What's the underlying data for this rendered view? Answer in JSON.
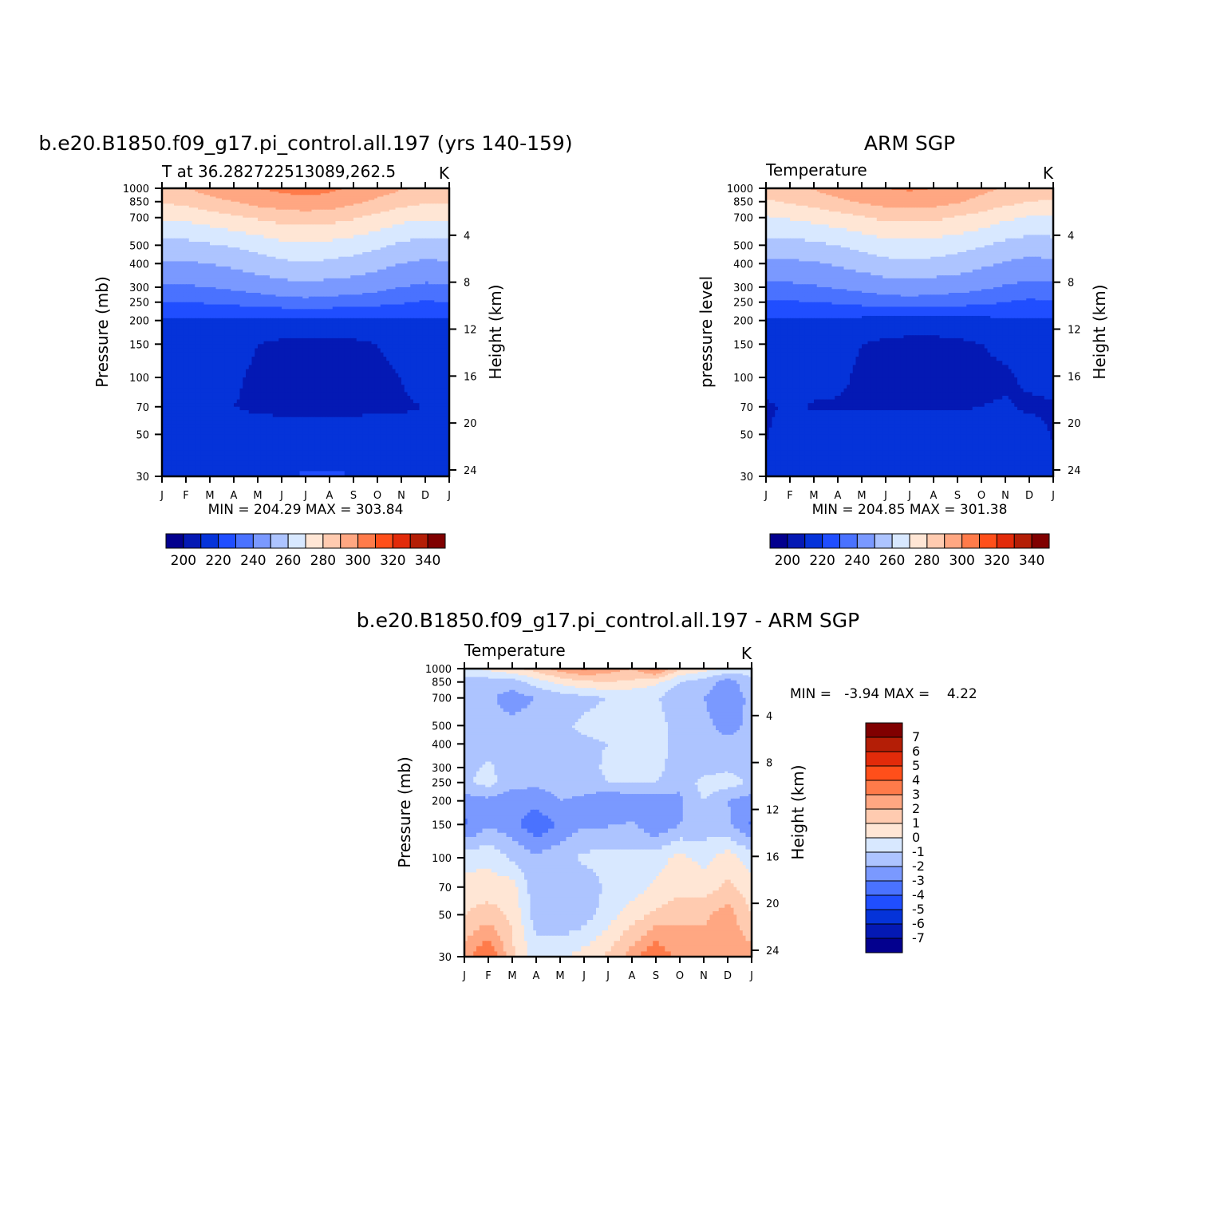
{
  "chart_data": [
    {
      "type": "heatmap",
      "title": "b.e20.B1850.f09_g17.pi_control.all.197 (yrs 140-159)",
      "left_label": "T at 36.282722513089,262.5",
      "right_label": "K",
      "ylabel": "Pressure (mb)",
      "y2label": "Height (km)",
      "stats": "MIN = 204.29 MAX = 303.84",
      "x": [
        "J",
        "F",
        "M",
        "A",
        "M",
        "J",
        "J",
        "A",
        "S",
        "O",
        "N",
        "D",
        "J"
      ],
      "y": [
        1000,
        850,
        700,
        500,
        400,
        300,
        250,
        200,
        150,
        100,
        70,
        50,
        30
      ],
      "y2_ticks": [
        4,
        8,
        12,
        16,
        20,
        24
      ],
      "ylim": [
        1000,
        30
      ],
      "yscale": "log",
      "z": [
        [
          287,
          290,
          294,
          297,
          300,
          302,
          303.8,
          302,
          299,
          295,
          291,
          288,
          287
        ],
        [
          281,
          283,
          287,
          290,
          294,
          296,
          297,
          296,
          292,
          288,
          284,
          281,
          281
        ],
        [
          271,
          272,
          275,
          278,
          281,
          284,
          285,
          284,
          281,
          277,
          273,
          271,
          271
        ],
        [
          257,
          257,
          259,
          261,
          264,
          267,
          268,
          267,
          265,
          262,
          258,
          256,
          257
        ],
        [
          249,
          249,
          250,
          252,
          255,
          258,
          259,
          258,
          256,
          253,
          250,
          248,
          249
        ],
        [
          239,
          239,
          240,
          242,
          244,
          246,
          247,
          246,
          245,
          243,
          240,
          238,
          239
        ],
        [
          230,
          230,
          231,
          232,
          234,
          236,
          237,
          236,
          235,
          233,
          231,
          229,
          230
        ],
        [
          219,
          219,
          219,
          219,
          218,
          217,
          217,
          217,
          217,
          218,
          218,
          219,
          219
        ],
        [
          219,
          219,
          218,
          216,
          210,
          208,
          207,
          208,
          208,
          210,
          214,
          218,
          219
        ],
        [
          218,
          218,
          216,
          212,
          207,
          205,
          205,
          205,
          206,
          207,
          210,
          217,
          218
        ],
        [
          216,
          216,
          214,
          210,
          208,
          208,
          208,
          208,
          208,
          208,
          208,
          210,
          216
        ],
        [
          216,
          216,
          216,
          216,
          215,
          214,
          214,
          214,
          214,
          215,
          216,
          216,
          216
        ],
        [
          215,
          215,
          215,
          215,
          216,
          218,
          221,
          221,
          220,
          215,
          215,
          215,
          215
        ]
      ],
      "colorbar": {
        "levels": [
          190,
          200,
          210,
          220,
          230,
          240,
          250,
          260,
          270,
          280,
          290,
          300,
          310,
          320,
          330,
          340
        ],
        "labels": [
          "200",
          "220",
          "240",
          "260",
          "280",
          "300",
          "320",
          "340"
        ],
        "colors": [
          "#03008e",
          "#0419b4",
          "#0533d9",
          "#204eff",
          "#4a72ff",
          "#7a99ff",
          "#adc4ff",
          "#d8e8ff",
          "#ffe6d5",
          "#ffcbb0",
          "#ffa782",
          "#ff7b4a",
          "#ff4f1a",
          "#e22b0a",
          "#b41e06",
          "#800000"
        ]
      }
    },
    {
      "type": "heatmap",
      "title": "ARM SGP",
      "left_label": "Temperature",
      "right_label": "K",
      "ylabel": "pressure level",
      "y2label": "Height (km)",
      "stats": "MIN = 204.85 MAX = 301.38",
      "x": [
        "J",
        "F",
        "M",
        "A",
        "M",
        "J",
        "J",
        "A",
        "S",
        "O",
        "N",
        "D",
        "J"
      ],
      "y": [
        1000,
        850,
        700,
        500,
        400,
        300,
        250,
        200,
        150,
        100,
        70,
        50,
        30
      ],
      "y2_ticks": [
        4,
        8,
        12,
        16,
        20,
        24
      ],
      "ylim": [
        1000,
        30
      ],
      "yscale": "log",
      "z": [
        [
          284,
          287,
          291,
          295,
          298,
          300,
          301.4,
          300,
          297,
          293,
          289,
          286,
          284
        ],
        [
          279,
          281,
          284,
          288,
          291,
          294,
          295,
          294,
          291,
          287,
          283,
          280,
          279
        ],
        [
          269,
          271,
          273,
          276,
          279,
          282,
          283,
          282,
          279,
          276,
          272,
          269,
          269
        ],
        [
          256,
          256,
          258,
          260,
          263,
          266,
          267,
          266,
          264,
          261,
          257,
          255,
          256
        ],
        [
          248,
          248,
          249,
          251,
          254,
          257,
          258,
          257,
          255,
          252,
          249,
          247,
          248
        ],
        [
          238,
          238,
          239,
          241,
          243,
          245,
          246,
          245,
          244,
          242,
          239,
          237,
          238
        ],
        [
          229,
          229,
          230,
          231,
          233,
          235,
          236,
          235,
          234,
          232,
          230,
          228,
          229
        ],
        [
          219,
          219,
          219,
          218,
          217,
          216,
          216,
          216,
          216,
          217,
          218,
          219,
          219
        ],
        [
          218,
          218,
          217,
          214,
          210,
          208,
          207,
          207,
          208,
          210,
          213,
          217,
          218
        ],
        [
          216,
          216,
          214,
          212,
          208,
          207,
          206,
          206,
          207,
          207,
          208,
          212,
          216
        ],
        [
          208,
          212,
          209,
          209,
          209,
          209,
          209,
          209,
          209,
          210,
          211,
          208,
          208
        ],
        [
          209,
          216,
          216,
          216,
          216,
          216,
          216,
          216,
          216,
          216,
          216,
          216,
          209
        ],
        [
          215,
          215,
          215,
          215,
          215,
          216,
          220,
          217,
          215,
          215,
          215,
          215,
          215
        ]
      ],
      "colorbar": {
        "levels": [
          190,
          200,
          210,
          220,
          230,
          240,
          250,
          260,
          270,
          280,
          290,
          300,
          310,
          320,
          330,
          340
        ],
        "labels": [
          "200",
          "220",
          "240",
          "260",
          "280",
          "300",
          "320",
          "340"
        ],
        "colors": [
          "#03008e",
          "#0419b4",
          "#0533d9",
          "#204eff",
          "#4a72ff",
          "#7a99ff",
          "#adc4ff",
          "#d8e8ff",
          "#ffe6d5",
          "#ffcbb0",
          "#ffa782",
          "#ff7b4a",
          "#ff4f1a",
          "#e22b0a",
          "#b41e06",
          "#800000"
        ]
      }
    },
    {
      "type": "heatmap",
      "title": "b.e20.B1850.f09_g17.pi_control.all.197 - ARM SGP",
      "left_label": "Temperature",
      "right_label": "K",
      "ylabel": "Pressure (mb)",
      "y2label": "Height (km)",
      "stats": "MIN =   -3.94 MAX =    4.22",
      "x": [
        "J",
        "F",
        "M",
        "A",
        "M",
        "J",
        "J",
        "A",
        "S",
        "O",
        "N",
        "D",
        "J"
      ],
      "y": [
        1000,
        850,
        700,
        500,
        400,
        300,
        250,
        200,
        150,
        100,
        70,
        50,
        30
      ],
      "y2_ticks": [
        4,
        8,
        12,
        16,
        20,
        24
      ],
      "ylim": [
        1000,
        30
      ],
      "yscale": "log",
      "z": [
        [
          -0.5,
          0.3,
          0.8,
          1.5,
          2.5,
          3.2,
          2.5,
          2.0,
          3.5,
          1.0,
          0.5,
          -0.3,
          -0.5
        ],
        [
          -1.3,
          -1.6,
          -1.5,
          -0.5,
          0.3,
          0.8,
          1.0,
          0.8,
          0.2,
          -1.0,
          -1.5,
          -2.5,
          -1.3
        ],
        [
          -1.8,
          -1.8,
          -2.5,
          -2.0,
          -1.6,
          -1.3,
          -1.0,
          -1.0,
          -0.8,
          -2.0,
          -2.0,
          -2.5,
          -1.8
        ],
        [
          -1.8,
          -1.6,
          -1.7,
          -1.5,
          -1.2,
          -0.8,
          -0.5,
          -0.7,
          -0.5,
          -1.5,
          -1.8,
          -2.3,
          -1.8
        ],
        [
          -1.5,
          -1.4,
          -1.5,
          -1.6,
          -1.6,
          -1.2,
          -1.0,
          -1.0,
          -0.5,
          -1.5,
          -1.6,
          -1.8,
          -1.5
        ],
        [
          -1.4,
          -0.8,
          -1.7,
          -1.7,
          -1.6,
          -1.4,
          -0.8,
          -0.8,
          -0.6,
          -1.6,
          -1.5,
          -1.2,
          -1.4
        ],
        [
          -1.2,
          -0.6,
          -1.6,
          -1.8,
          -1.7,
          -1.5,
          -1.0,
          -1.0,
          -1.0,
          -1.8,
          -0.6,
          -0.5,
          -1.2
        ],
        [
          -2.5,
          -2.3,
          -2.8,
          -2.5,
          -2.0,
          -2.2,
          -3.0,
          -2.5,
          -2.5,
          -2.2,
          -1.0,
          -2.0,
          -2.5
        ],
        [
          -3.2,
          -2.2,
          -2.6,
          -3.8,
          -2.8,
          -2.1,
          -2.1,
          -1.9,
          -2.9,
          -2.0,
          -1.6,
          -1.8,
          -3.2
        ],
        [
          -0.5,
          -0.2,
          -1.2,
          -1.8,
          -1.3,
          -0.8,
          -0.6,
          -0.6,
          -0.4,
          0.3,
          -0.3,
          0.5,
          -0.5
        ],
        [
          0.5,
          0.4,
          0.5,
          -1.8,
          -2.0,
          -1.6,
          -0.8,
          -0.5,
          0.2,
          0.6,
          0.5,
          1.2,
          0.5
        ],
        [
          1.0,
          1.5,
          0.8,
          -1.5,
          -2.0,
          -1.5,
          -0.5,
          0.5,
          1.2,
          1.8,
          1.8,
          2.5,
          1.0
        ],
        [
          2.5,
          4.2,
          1.2,
          -0.5,
          -0.2,
          0.4,
          1.2,
          2.5,
          4.0,
          2.5,
          2.5,
          2.5,
          2.5
        ]
      ],
      "colorbar": {
        "levels": [
          -8,
          -7,
          -6,
          -5,
          -4,
          -3,
          -2,
          -1,
          0,
          1,
          2,
          3,
          4,
          5,
          6,
          7,
          8
        ],
        "labels": [
          "-7",
          "-6",
          "-5",
          "-4",
          "-3",
          "-2",
          "-1",
          "0",
          "1",
          "2",
          "3",
          "4",
          "5",
          "6",
          "7"
        ],
        "colors": [
          "#03008e",
          "#0419b4",
          "#0533d9",
          "#204eff",
          "#4a72ff",
          "#7a99ff",
          "#adc4ff",
          "#d8e8ff",
          "#ffe6d5",
          "#ffcbb0",
          "#ffa782",
          "#ff7b4a",
          "#ff4f1a",
          "#e22b0a",
          "#b41e06",
          "#800000"
        ]
      }
    }
  ]
}
